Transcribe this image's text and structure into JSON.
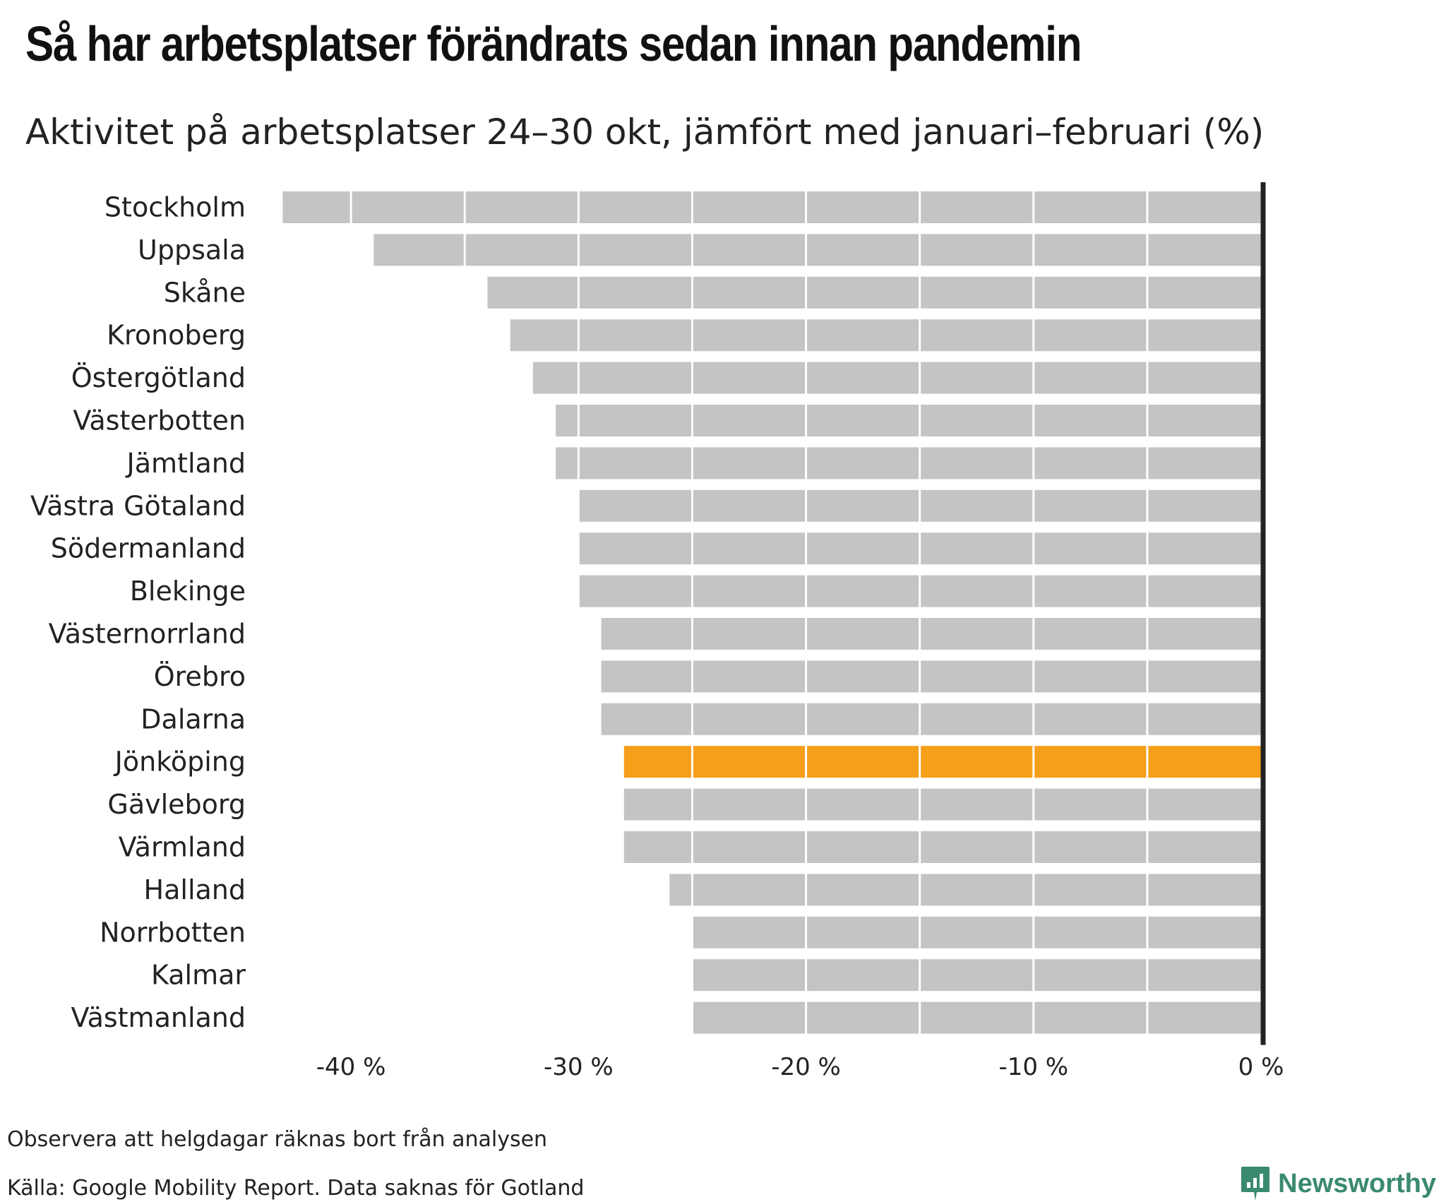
{
  "title": "Så har arbetsplatser förändrats sedan innan pandemin",
  "subtitle": "Aktivitet på arbetsplatser 24–30 okt, jämfört med januari–februari (%)",
  "note": "Observera att helgdagar räknas bort från analysen",
  "source": "Källa: Google Mobility Report. Data saknas för Gotland",
  "brand": {
    "name": "Newsworthy",
    "icon": "newsworthy-logo-icon",
    "color": "#3a8a6e"
  },
  "colors": {
    "bar": "#c4c4c4",
    "highlight": "#f59f1a",
    "zero_line": "#222222",
    "grid": "#ffffff"
  },
  "chart_data": {
    "type": "bar",
    "orientation": "horizontal",
    "categories": [
      "Stockholm",
      "Uppsala",
      "Skåne",
      "Kronoberg",
      "Östergötland",
      "Västerbotten",
      "Jämtland",
      "Västra Götaland",
      "Södermanland",
      "Blekinge",
      "Västernorrland",
      "Örebro",
      "Dalarna",
      "Jönköping",
      "Gävleborg",
      "Värmland",
      "Halland",
      "Norrbotten",
      "Kalmar",
      "Västmanland"
    ],
    "values": [
      -43,
      -39,
      -34,
      -33,
      -32,
      -31,
      -31,
      -30,
      -30,
      -30,
      -29,
      -29,
      -29,
      -28,
      -28,
      -28,
      -26,
      -25,
      -25,
      -25
    ],
    "highlight": "Jönköping",
    "xlim": [
      -45,
      0
    ],
    "xticks": [
      -40,
      -30,
      -20,
      -10,
      0
    ],
    "xtick_labels": [
      "-40 %",
      "-30 %",
      "-20 %",
      "-10 %",
      "0 %"
    ],
    "grid": true,
    "zero_line": true
  }
}
